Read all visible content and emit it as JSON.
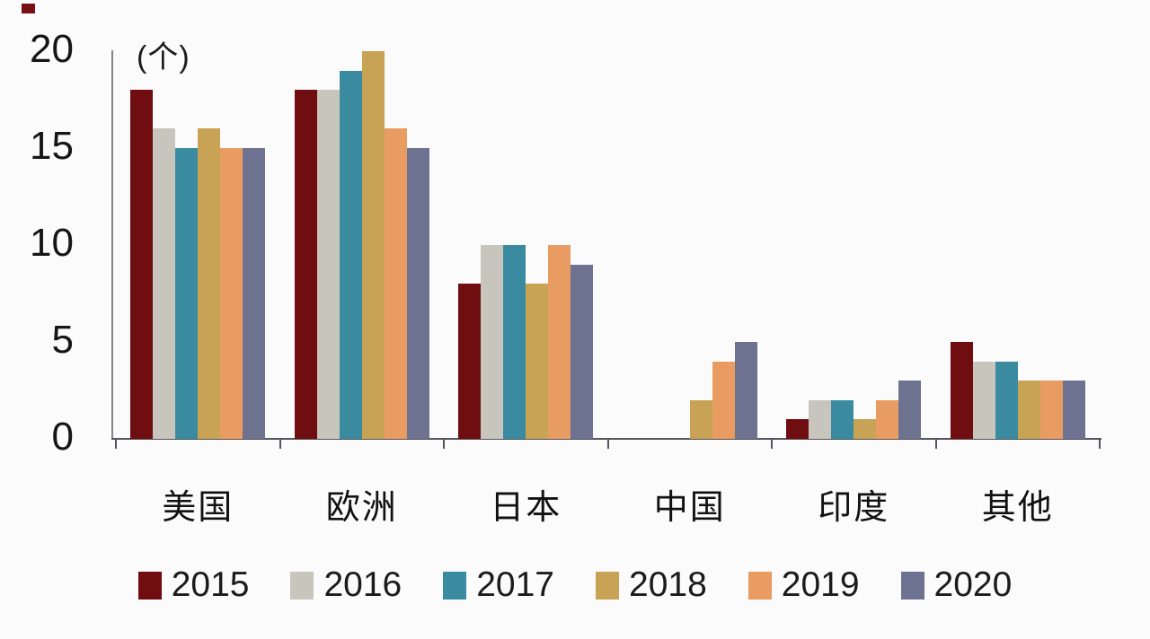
{
  "chart": {
    "unit_label": "(个)",
    "background_color": "#fbfbfc",
    "y_axis_color": "#85878a",
    "x_axis_color": "#55565a",
    "text_color": "#161616"
  },
  "chart_data": {
    "type": "bar",
    "title": "",
    "xlabel": "",
    "ylabel": "(个)",
    "ylim": [
      0,
      20
    ],
    "yticks": [
      0,
      5,
      10,
      15,
      20
    ],
    "grid": false,
    "legend_position": "bottom",
    "categories": [
      "美国",
      "欧洲",
      "日本",
      "中国",
      "印度",
      "其他"
    ],
    "series": [
      {
        "name": "2015",
        "color": "#6f0d11",
        "values": [
          18,
          18,
          8,
          0,
          1,
          5
        ]
      },
      {
        "name": "2016",
        "color": "#c8c6bc",
        "values": [
          16,
          18,
          10,
          0,
          2,
          4
        ]
      },
      {
        "name": "2017",
        "color": "#3a8ba0",
        "values": [
          15,
          19,
          10,
          0,
          2,
          4
        ]
      },
      {
        "name": "2018",
        "color": "#c9a355",
        "values": [
          16,
          20,
          8,
          2,
          1,
          3
        ]
      },
      {
        "name": "2019",
        "color": "#e89c62",
        "values": [
          15,
          16,
          10,
          4,
          2,
          3
        ]
      },
      {
        "name": "2020",
        "color": "#6c7290",
        "values": [
          15,
          15,
          9,
          5,
          3,
          3
        ]
      }
    ]
  }
}
